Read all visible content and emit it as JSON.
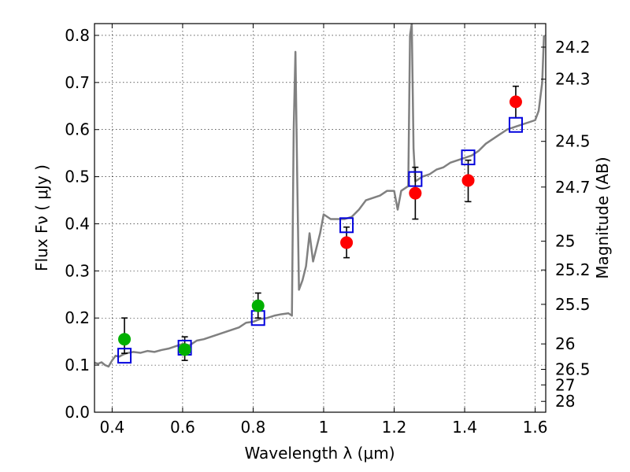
{
  "chart_data": {
    "type": "scatter",
    "xlabel": "Wavelength  λ (μm)",
    "ylabel": "Flux  Fν  ( μJy )",
    "y2label": "Magnitude (AB)",
    "xlim": [
      0.35,
      1.63
    ],
    "ylim": [
      0.0,
      0.825
    ],
    "grid": true,
    "x_ticks": [
      0.4,
      0.6,
      0.8,
      1.0,
      1.2,
      1.4,
      1.6
    ],
    "x_tick_labels": [
      "0.4",
      "0.6",
      "0.8",
      "1",
      "1.2",
      "1.4",
      "1.6"
    ],
    "y_ticks": [
      0.0,
      0.1,
      0.2,
      0.3,
      0.4,
      0.5,
      0.6,
      0.7,
      0.8
    ],
    "y_tick_labels": [
      "0.0",
      "0.1",
      "0.2",
      "0.3",
      "0.4",
      "0.5",
      "0.6",
      "0.7",
      "0.8"
    ],
    "magnitude_ticks": [
      {
        "label": "24.2",
        "flux": 0.775
      },
      {
        "label": "24.3",
        "flux": 0.707
      },
      {
        "label": "24.5",
        "flux": 0.575
      },
      {
        "label": "24.7",
        "flux": 0.478
      },
      {
        "label": "25",
        "flux": 0.363
      },
      {
        "label": "25.2",
        "flux": 0.302
      },
      {
        "label": "25.5",
        "flux": 0.229
      },
      {
        "label": "26",
        "flux": 0.145
      },
      {
        "label": "26.5",
        "flux": 0.091
      },
      {
        "label": "27",
        "flux": 0.058
      },
      {
        "label": "28",
        "flux": 0.023
      }
    ],
    "series": [
      {
        "kind": "model_spectrum",
        "color": "#808080",
        "points": [
          [
            0.35,
            0.105
          ],
          [
            0.36,
            0.103
          ],
          [
            0.37,
            0.106
          ],
          [
            0.38,
            0.1
          ],
          [
            0.39,
            0.097
          ],
          [
            0.4,
            0.11
          ],
          [
            0.41,
            0.12
          ],
          [
            0.42,
            0.118
          ],
          [
            0.43,
            0.122
          ],
          [
            0.44,
            0.125
          ],
          [
            0.46,
            0.128
          ],
          [
            0.48,
            0.126
          ],
          [
            0.5,
            0.13
          ],
          [
            0.52,
            0.128
          ],
          [
            0.54,
            0.132
          ],
          [
            0.56,
            0.135
          ],
          [
            0.58,
            0.14
          ],
          [
            0.6,
            0.145
          ],
          [
            0.62,
            0.142
          ],
          [
            0.64,
            0.152
          ],
          [
            0.66,
            0.155
          ],
          [
            0.68,
            0.16
          ],
          [
            0.7,
            0.165
          ],
          [
            0.72,
            0.17
          ],
          [
            0.74,
            0.175
          ],
          [
            0.76,
            0.18
          ],
          [
            0.78,
            0.19
          ],
          [
            0.8,
            0.192
          ],
          [
            0.82,
            0.198
          ],
          [
            0.84,
            0.2
          ],
          [
            0.86,
            0.205
          ],
          [
            0.88,
            0.208
          ],
          [
            0.9,
            0.21
          ],
          [
            0.91,
            0.205
          ],
          [
            0.915,
            0.6
          ],
          [
            0.92,
            0.765
          ],
          [
            0.925,
            0.5
          ],
          [
            0.93,
            0.26
          ],
          [
            0.94,
            0.28
          ],
          [
            0.95,
            0.31
          ],
          [
            0.96,
            0.38
          ],
          [
            0.97,
            0.32
          ],
          [
            0.98,
            0.35
          ],
          [
            0.99,
            0.38
          ],
          [
            1.0,
            0.42
          ],
          [
            1.02,
            0.41
          ],
          [
            1.04,
            0.41
          ],
          [
            1.06,
            0.41
          ],
          [
            1.08,
            0.415
          ],
          [
            1.1,
            0.43
          ],
          [
            1.12,
            0.45
          ],
          [
            1.14,
            0.455
          ],
          [
            1.16,
            0.46
          ],
          [
            1.18,
            0.47
          ],
          [
            1.2,
            0.47
          ],
          [
            1.21,
            0.43
          ],
          [
            1.22,
            0.47
          ],
          [
            1.23,
            0.475
          ],
          [
            1.24,
            0.48
          ],
          [
            1.245,
            0.8
          ],
          [
            1.25,
            0.825
          ],
          [
            1.255,
            0.56
          ],
          [
            1.26,
            0.49
          ],
          [
            1.28,
            0.5
          ],
          [
            1.3,
            0.505
          ],
          [
            1.32,
            0.515
          ],
          [
            1.34,
            0.52
          ],
          [
            1.36,
            0.53
          ],
          [
            1.38,
            0.535
          ],
          [
            1.4,
            0.54
          ],
          [
            1.42,
            0.545
          ],
          [
            1.44,
            0.555
          ],
          [
            1.46,
            0.57
          ],
          [
            1.48,
            0.58
          ],
          [
            1.5,
            0.59
          ],
          [
            1.52,
            0.6
          ],
          [
            1.54,
            0.605
          ],
          [
            1.56,
            0.61
          ],
          [
            1.58,
            0.615
          ],
          [
            1.6,
            0.62
          ],
          [
            1.61,
            0.64
          ],
          [
            1.62,
            0.7
          ],
          [
            1.625,
            0.8
          ]
        ]
      },
      {
        "kind": "observed_green",
        "color": "#00b000",
        "points": [
          {
            "x": 0.435,
            "y": 0.155,
            "lo": 0.125,
            "hi": 0.2
          },
          {
            "x": 0.606,
            "y": 0.133,
            "lo": 0.11,
            "hi": 0.16
          },
          {
            "x": 0.814,
            "y": 0.226,
            "lo": 0.2,
            "hi": 0.253
          }
        ]
      },
      {
        "kind": "observed_red",
        "color": "#ff0000",
        "points": [
          {
            "x": 1.065,
            "y": 0.36,
            "lo": 0.328,
            "hi": 0.393
          },
          {
            "x": 1.26,
            "y": 0.465,
            "lo": 0.41,
            "hi": 0.52
          },
          {
            "x": 1.41,
            "y": 0.492,
            "lo": 0.447,
            "hi": 0.535
          },
          {
            "x": 1.545,
            "y": 0.659,
            "lo": 0.625,
            "hi": 0.692
          }
        ]
      },
      {
        "kind": "model_synthetic",
        "color": "#0000dd",
        "points": [
          {
            "x": 0.435,
            "y": 0.12
          },
          {
            "x": 0.606,
            "y": 0.137
          },
          {
            "x": 0.814,
            "y": 0.2
          },
          {
            "x": 1.065,
            "y": 0.397
          },
          {
            "x": 1.26,
            "y": 0.495
          },
          {
            "x": 1.41,
            "y": 0.541
          },
          {
            "x": 1.545,
            "y": 0.61
          }
        ]
      }
    ]
  }
}
